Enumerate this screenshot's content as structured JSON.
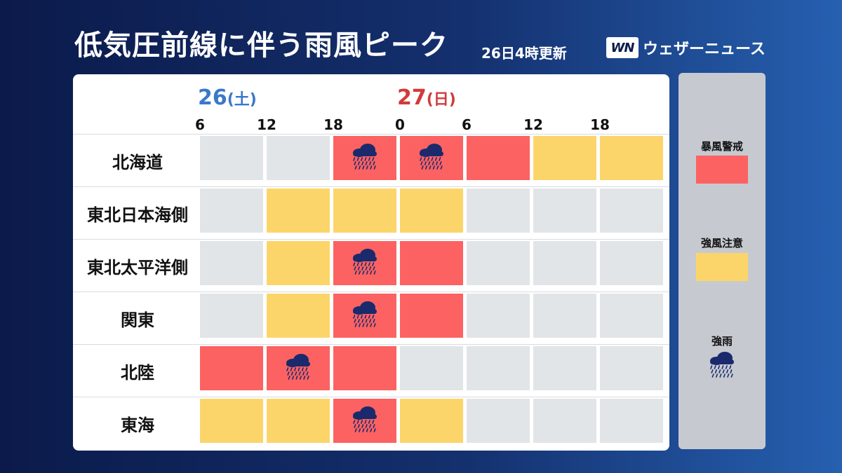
{
  "header": {
    "title": "低気圧前線に伴う雨風ピーク",
    "updated": "26日4時更新",
    "logo_mark": "WN",
    "logo_text": "ウェザーニュース"
  },
  "colors": {
    "none": "#e2e5e8",
    "strong_wind_advisory": "#fcd56a",
    "storm_warning": "#fc6262",
    "rain_icon": "#1a2a6c",
    "saturday": "#3a78c9",
    "sunday": "#d23a3a"
  },
  "chart_data": {
    "type": "heatmap",
    "days": [
      {
        "date": "26",
        "weekday": "(土)"
      },
      {
        "date": "27",
        "weekday": "(日)"
      }
    ],
    "hour_ticks": [
      "6",
      "12",
      "18",
      "0",
      "6",
      "12",
      "18"
    ],
    "levels": {
      "0": "",
      "1": "強風注意",
      "2": "暴風警戒"
    },
    "rows": [
      {
        "region": "北海道",
        "levels": [
          0,
          0,
          2,
          2,
          2,
          1,
          1
        ],
        "heavy_rain": [
          false,
          false,
          true,
          true,
          false,
          false,
          false
        ]
      },
      {
        "region": "東北日本海側",
        "levels": [
          0,
          1,
          1,
          1,
          0,
          0,
          0
        ],
        "heavy_rain": [
          false,
          false,
          false,
          false,
          false,
          false,
          false
        ]
      },
      {
        "region": "東北太平洋側",
        "levels": [
          0,
          1,
          2,
          2,
          0,
          0,
          0
        ],
        "heavy_rain": [
          false,
          false,
          true,
          false,
          false,
          false,
          false
        ]
      },
      {
        "region": "関東",
        "levels": [
          0,
          1,
          2,
          2,
          0,
          0,
          0
        ],
        "heavy_rain": [
          false,
          false,
          true,
          false,
          false,
          false,
          false
        ]
      },
      {
        "region": "北陸",
        "levels": [
          2,
          2,
          2,
          0,
          0,
          0,
          0
        ],
        "heavy_rain": [
          false,
          true,
          false,
          false,
          false,
          false,
          false
        ]
      },
      {
        "region": "東海",
        "levels": [
          1,
          1,
          2,
          1,
          0,
          0,
          0
        ],
        "heavy_rain": [
          false,
          false,
          true,
          false,
          false,
          false,
          false
        ]
      }
    ]
  },
  "legend": {
    "storm_warning": "暴風警戒",
    "strong_wind_advisory": "強風注意",
    "heavy_rain": "強雨",
    "heavy_rain_icon": "cloud-heavy-rain-icon"
  }
}
